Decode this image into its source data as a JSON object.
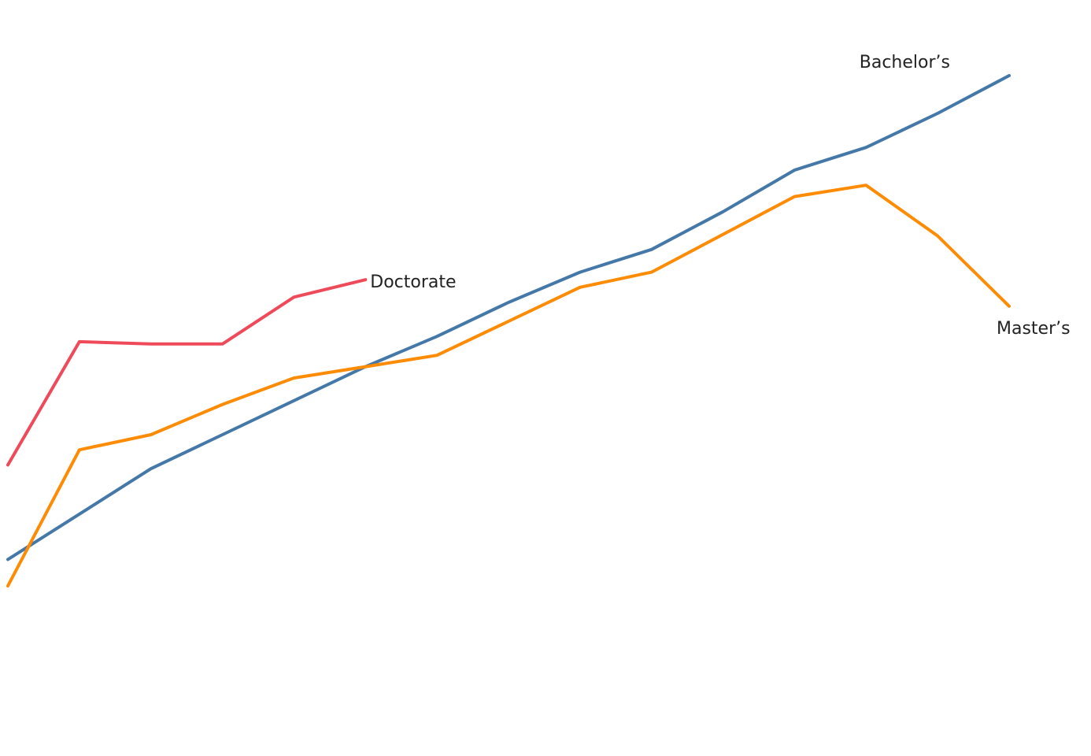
{
  "chart_data": {
    "type": "line",
    "title": "",
    "xlabel": "",
    "ylabel": "",
    "grid": false,
    "legend": "direct labels at line ends",
    "x": [
      1,
      2,
      3,
      4,
      5,
      6,
      7,
      8,
      9,
      10,
      11,
      12,
      13,
      14,
      15
    ],
    "ylim": [
      0,
      100
    ],
    "series": [
      {
        "name": "Bachelor’s",
        "color": "#4478a8",
        "values": [
          26.0,
          32.0,
          38.0,
          42.5,
          47.0,
          51.5,
          55.5,
          60.0,
          64.0,
          67.0,
          72.0,
          77.5,
          80.5,
          85.0,
          90.0
        ]
      },
      {
        "name": "Master’s",
        "color": "#fd8b04",
        "values": [
          22.5,
          40.5,
          42.5,
          46.5,
          50.0,
          51.5,
          53.0,
          57.5,
          62.0,
          64.0,
          69.0,
          74.0,
          75.5,
          68.8,
          59.5
        ]
      },
      {
        "name": "Doctorate",
        "color": "#ef4a59",
        "values": [
          38.5,
          54.8,
          54.5,
          54.5,
          60.7,
          63.0,
          null,
          null,
          null,
          null,
          null,
          null,
          null,
          null,
          null
        ]
      }
    ]
  }
}
